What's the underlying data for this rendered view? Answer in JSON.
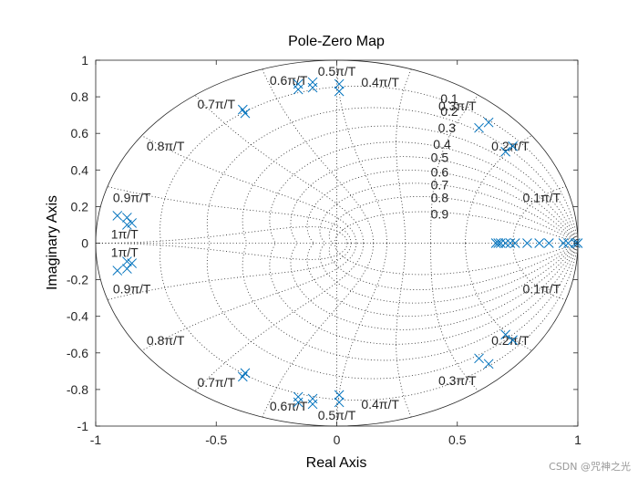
{
  "chart_data": {
    "type": "scatter",
    "title": "Pole-Zero Map",
    "xlabel": "Real Axis",
    "ylabel": "Imaginary Axis",
    "xlim": [
      -1,
      1
    ],
    "ylim": [
      -1,
      1
    ],
    "x_ticks": [
      "-1",
      "-0.5",
      "0",
      "0.5",
      "1"
    ],
    "y_ticks": [
      "1",
      "0.8",
      "0.6",
      "0.4",
      "0.2",
      "0",
      "-0.2",
      "-0.4",
      "-0.6",
      "-0.8",
      "-1"
    ],
    "grid": "zgrid",
    "marker": "x",
    "color": "#0072BD",
    "damping_labels": [
      "0.1",
      "0.2",
      "0.3",
      "0.4",
      "0.5",
      "0.6",
      "0.7",
      "0.8",
      "0.9"
    ],
    "frequency_labels_upper": [
      {
        "text": "0.1π/T",
        "x": 0.85,
        "y": 0.25
      },
      {
        "text": "0.2π/T",
        "x": 0.72,
        "y": 0.53
      },
      {
        "text": "0.3π/T",
        "x": 0.5,
        "y": 0.75
      },
      {
        "text": "0.4π/T",
        "x": 0.18,
        "y": 0.88
      },
      {
        "text": "0.5π/T",
        "x": 0.0,
        "y": 0.94
      },
      {
        "text": "0.6π/T",
        "x": -0.2,
        "y": 0.89
      },
      {
        "text": "0.7π/T",
        "x": -0.5,
        "y": 0.76
      },
      {
        "text": "0.8π/T",
        "x": -0.71,
        "y": 0.53
      },
      {
        "text": "0.9π/T",
        "x": -0.85,
        "y": 0.25
      },
      {
        "text": "1π/T",
        "x": -0.88,
        "y": 0.05
      }
    ],
    "frequency_labels_lower": [
      {
        "text": "0.1π/T",
        "x": 0.85,
        "y": -0.25
      },
      {
        "text": "0.2π/T",
        "x": 0.72,
        "y": -0.53
      },
      {
        "text": "0.3π/T",
        "x": 0.5,
        "y": -0.75
      },
      {
        "text": "0.4π/T",
        "x": 0.18,
        "y": -0.88
      },
      {
        "text": "0.5π/T",
        "x": 0.0,
        "y": -0.94
      },
      {
        "text": "0.6π/T",
        "x": -0.2,
        "y": -0.89
      },
      {
        "text": "0.7π/T",
        "x": -0.5,
        "y": -0.76
      },
      {
        "text": "0.8π/T",
        "x": -0.71,
        "y": -0.53
      },
      {
        "text": "0.9π/T",
        "x": -0.85,
        "y": -0.25
      },
      {
        "text": "1π/T",
        "x": -0.88,
        "y": -0.05
      }
    ],
    "poles": [
      [
        0.01,
        0.87
      ],
      [
        0.01,
        0.83
      ],
      [
        -0.1,
        0.88
      ],
      [
        -0.1,
        0.85
      ],
      [
        -0.16,
        0.84
      ],
      [
        -0.16,
        0.87
      ],
      [
        -0.39,
        0.73
      ],
      [
        -0.38,
        0.71
      ],
      [
        -0.91,
        0.15
      ],
      [
        -0.87,
        0.14
      ],
      [
        -0.85,
        0.11
      ],
      [
        -0.87,
        0.1
      ],
      [
        0.59,
        0.63
      ],
      [
        0.63,
        0.66
      ],
      [
        0.7,
        0.5
      ],
      [
        0.73,
        0.53
      ],
      [
        0.66,
        0.0
      ],
      [
        0.67,
        0.0
      ],
      [
        0.68,
        0.0
      ],
      [
        0.7,
        0.0
      ],
      [
        0.72,
        0.0
      ],
      [
        0.74,
        0.0
      ],
      [
        0.79,
        0.0
      ],
      [
        0.84,
        0.0
      ],
      [
        0.88,
        0.0
      ],
      [
        0.94,
        0.0
      ],
      [
        0.96,
        0.0
      ],
      [
        0.99,
        0.0
      ],
      [
        1.0,
        0.0
      ],
      [
        0.01,
        -0.87
      ],
      [
        0.01,
        -0.83
      ],
      [
        -0.1,
        -0.88
      ],
      [
        -0.1,
        -0.85
      ],
      [
        -0.16,
        -0.84
      ],
      [
        -0.16,
        -0.87
      ],
      [
        -0.39,
        -0.73
      ],
      [
        -0.38,
        -0.71
      ],
      [
        -0.91,
        -0.15
      ],
      [
        -0.87,
        -0.14
      ],
      [
        -0.85,
        -0.11
      ],
      [
        -0.87,
        -0.1
      ],
      [
        0.59,
        -0.63
      ],
      [
        0.63,
        -0.66
      ],
      [
        0.7,
        -0.5
      ],
      [
        0.73,
        -0.53
      ]
    ]
  },
  "watermark": "CSDN @咒神之光"
}
